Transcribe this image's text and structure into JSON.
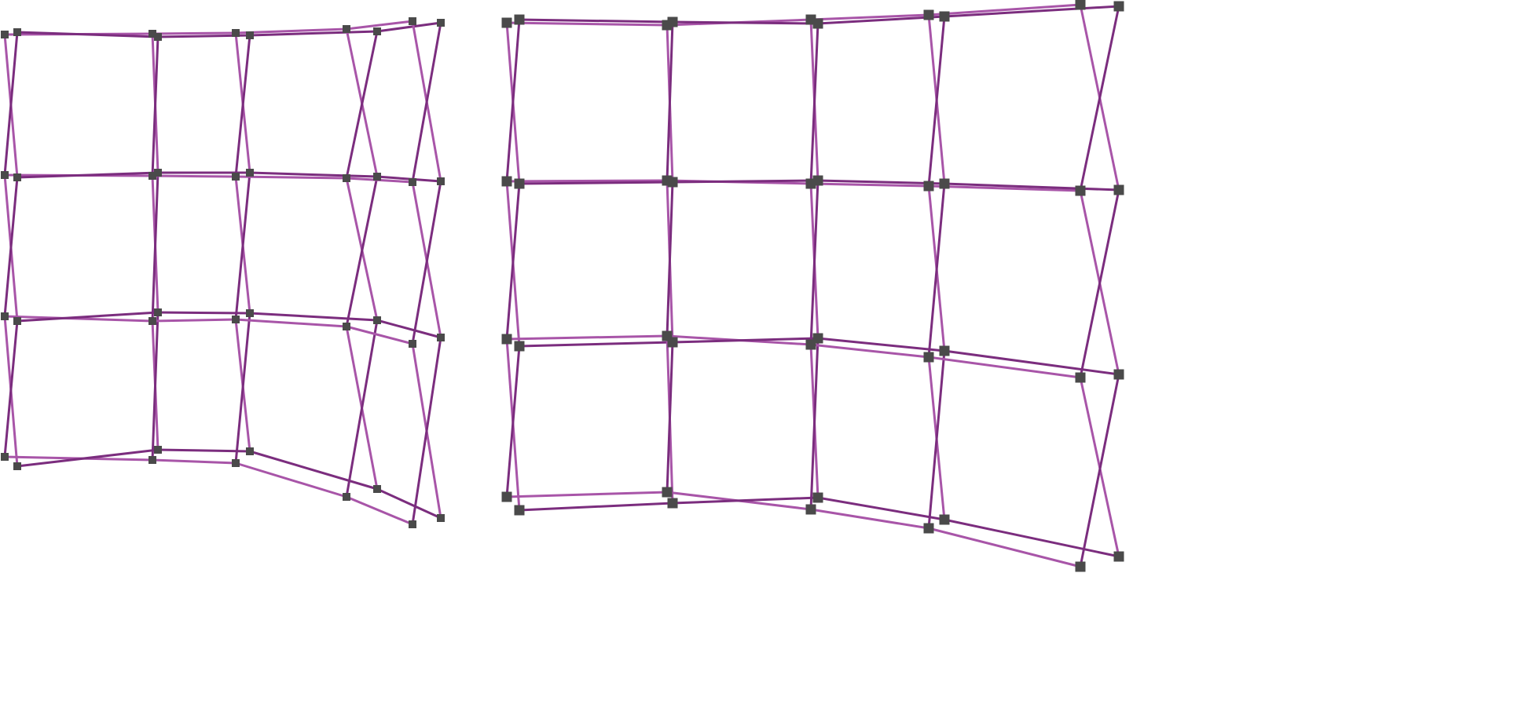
{
  "scene": {
    "background_color": "#ffffff",
    "strut_color_light": "#a855a8",
    "strut_color_dark": "#7b2d7e",
    "hub_color": "#4a4a4a",
    "frames": [
      "left-frame",
      "right-frame"
    ]
  }
}
